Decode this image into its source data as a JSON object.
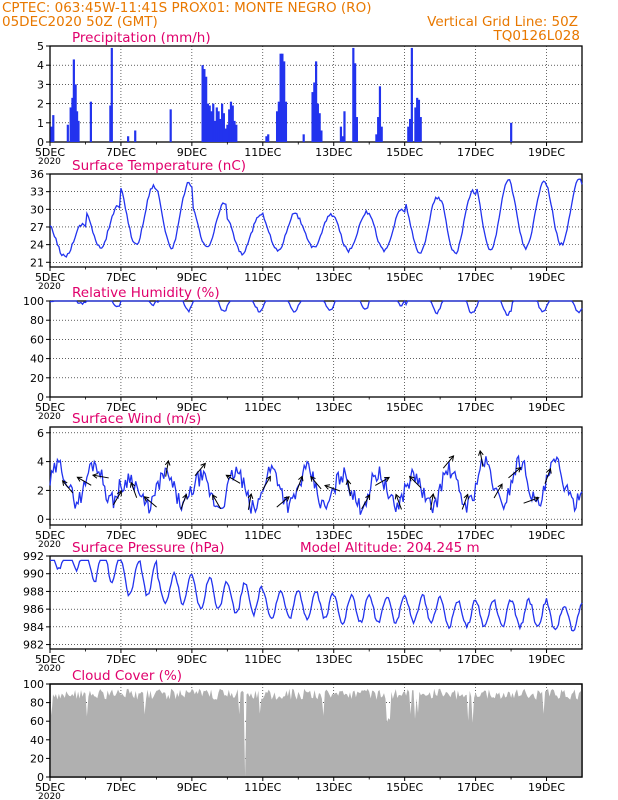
{
  "header": {
    "line1_left": "CPTEC:   063:45W-11:41S   PROX01: MONTE NEGRO (RO)",
    "line2_left": "05DEC2020 50Z (GMT)",
    "line2_right": "Vertical Grid Line: 50Z",
    "line3_right": "TQ0126L028"
  },
  "colors": {
    "header": "#e87800",
    "title": "#e0006c",
    "series": "#2233ee",
    "cloud": "#b0b0b0",
    "grid": "#000000"
  },
  "x_tick_labels": [
    "5DEC",
    "7DEC",
    "9DEC",
    "11DEC",
    "13DEC",
    "15DEC",
    "17DEC",
    "19DEC"
  ],
  "x_tick_days": [
    0,
    2,
    4,
    6,
    8,
    10,
    12,
    14
  ],
  "year_label": "2020",
  "chart_data": [
    {
      "type": "bar",
      "title": "Precipitation (mm/h)",
      "ylim": [
        0,
        5
      ],
      "yticks": [
        "0",
        "1",
        "2",
        "3",
        "4",
        "5"
      ],
      "x_unit": "days since 05DEC 00Z",
      "x": [
        0.04,
        0.09,
        0.5,
        0.58,
        0.63,
        0.67,
        0.7,
        0.72,
        0.76,
        0.8,
        1.15,
        1.7,
        1.74,
        2.2,
        2.4,
        3.4,
        4.3,
        4.35,
        4.4,
        4.45,
        4.5,
        4.55,
        4.6,
        4.65,
        4.7,
        4.75,
        4.8,
        4.85,
        4.9,
        4.95,
        5.0,
        5.05,
        5.1,
        5.15,
        5.2,
        5.25,
        6.1,
        6.15,
        6.4,
        6.45,
        6.5,
        6.55,
        6.6,
        6.65,
        7.15,
        7.4,
        7.45,
        7.5,
        7.55,
        7.6,
        7.65,
        8.2,
        8.25,
        8.3,
        8.55,
        8.6,
        8.65,
        9.2,
        9.25,
        9.3,
        9.35,
        10.1,
        10.15,
        10.2,
        10.3,
        10.35,
        10.4,
        10.45,
        13.0
      ],
      "values": [
        0.8,
        1.4,
        0.9,
        1.8,
        2.3,
        4.3,
        1.2,
        3.0,
        1.6,
        1.1,
        2.1,
        1.9,
        4.9,
        0.3,
        0.6,
        1.7,
        4.0,
        3.8,
        3.4,
        2.0,
        1.9,
        1.6,
        2.0,
        1.1,
        1.8,
        1.6,
        1.2,
        2.0,
        1.5,
        0.7,
        0.9,
        1.7,
        2.1,
        1.9,
        1.1,
        0.9,
        0.3,
        0.4,
        1.6,
        2.1,
        4.6,
        4.6,
        4.2,
        2.1,
        0.4,
        2.6,
        3.1,
        4.2,
        2.0,
        1.5,
        0.6,
        0.8,
        0.3,
        1.6,
        4.9,
        4.1,
        1.3,
        0.4,
        1.3,
        2.9,
        0.8,
        0.8,
        1.2,
        4.9,
        1.8,
        2.3,
        2.2,
        1.3,
        1.0
      ]
    },
    {
      "type": "line",
      "title": "Surface Temperature (nC)",
      "ylim": [
        20.2,
        36
      ],
      "yticks": [
        "21",
        "24",
        "27",
        "30",
        "33",
        "36"
      ],
      "ytick_values": [
        21,
        24,
        27,
        30,
        33,
        36
      ],
      "period": 1,
      "min_hour": 0.42,
      "base": [
        22,
        23.5,
        24,
        23.5,
        23.5,
        22.5,
        23,
        23.5,
        23,
        23,
        22.5,
        22.5,
        23,
        23.5,
        24
      ],
      "amp": [
        5.5,
        7,
        10,
        11,
        7.5,
        6.5,
        6.5,
        5.5,
        6.5,
        7,
        9.5,
        10.5,
        12,
        11,
        11
      ],
      "values_note": ""
    },
    {
      "type": "line",
      "title": "Relative Humidity (%)",
      "ylim": [
        0,
        100
      ],
      "yticks": [
        "0",
        "20",
        "40",
        "60",
        "80",
        "100"
      ],
      "ytick_values": [
        0,
        20,
        40,
        60,
        80,
        100
      ],
      "period": 1,
      "min_hour": 0.9,
      "base": [
        98,
        95,
        96,
        90,
        90,
        90,
        88,
        90,
        92,
        96,
        88,
        88,
        86,
        88,
        88
      ],
      "amp": [
        10,
        30,
        45,
        52,
        45,
        40,
        48,
        45,
        42,
        50,
        50,
        50,
        48,
        52,
        55
      ]
    },
    {
      "type": "line",
      "title": "Surface Wind (m/s)",
      "ylim": [
        -0.4,
        6.4
      ],
      "yticks": [
        "0",
        "2",
        "4",
        "6"
      ],
      "ytick_values": [
        0,
        2,
        4,
        6
      ],
      "period": 1,
      "min_hour": 0.75,
      "base": [
        1.3,
        1.3,
        0.9,
        1.0,
        0.9,
        0.7,
        1.0,
        0.8,
        0.9,
        0.9,
        0.9,
        1.0,
        1.1,
        1.0,
        1.1
      ],
      "amp": [
        2.4,
        2.6,
        2.0,
        2.1,
        2.0,
        2.6,
        2.5,
        2.6,
        2.2,
        2.3,
        2.1,
        2.4,
        2.8,
        3.0,
        2.8
      ],
      "arrow_angles": [
        -40,
        -60,
        -80,
        30,
        -20,
        -50,
        10,
        20,
        40,
        -30,
        -60,
        10,
        30,
        50,
        20,
        -40,
        -70,
        -10,
        30,
        60,
        -20,
        -45,
        10,
        40,
        20,
        -10,
        30,
        50,
        70,
        20
      ]
    },
    {
      "type": "line",
      "title": "Surface Pressure (hPa)",
      "annotation": "Model Altitude: 204.245 m",
      "ylim": [
        981.5,
        992
      ],
      "yticks": [
        "982",
        "984",
        "986",
        "988",
        "990",
        "992"
      ],
      "ytick_values": [
        982,
        984,
        986,
        988,
        990,
        992
      ],
      "period": 0.5,
      "min_hour": 0.25,
      "base": [
        990.5,
        989,
        987.5,
        986.5,
        986,
        985.5,
        985,
        985,
        984.5,
        984.5,
        984.5,
        984,
        984,
        984,
        983.5
      ],
      "amp": [
        3,
        4,
        4,
        3.5,
        3.5,
        3.5,
        3,
        3,
        3,
        3,
        3,
        3,
        3,
        3,
        3
      ]
    },
    {
      "type": "area",
      "title": "Cloud Cover (%)",
      "ylim": [
        0,
        100
      ],
      "yticks": [
        "0",
        "20",
        "40",
        "60",
        "80",
        "100"
      ],
      "ytick_values": [
        0,
        20,
        40,
        60,
        80,
        100
      ],
      "typical_value": 95,
      "gap_day": 5.5
    }
  ]
}
